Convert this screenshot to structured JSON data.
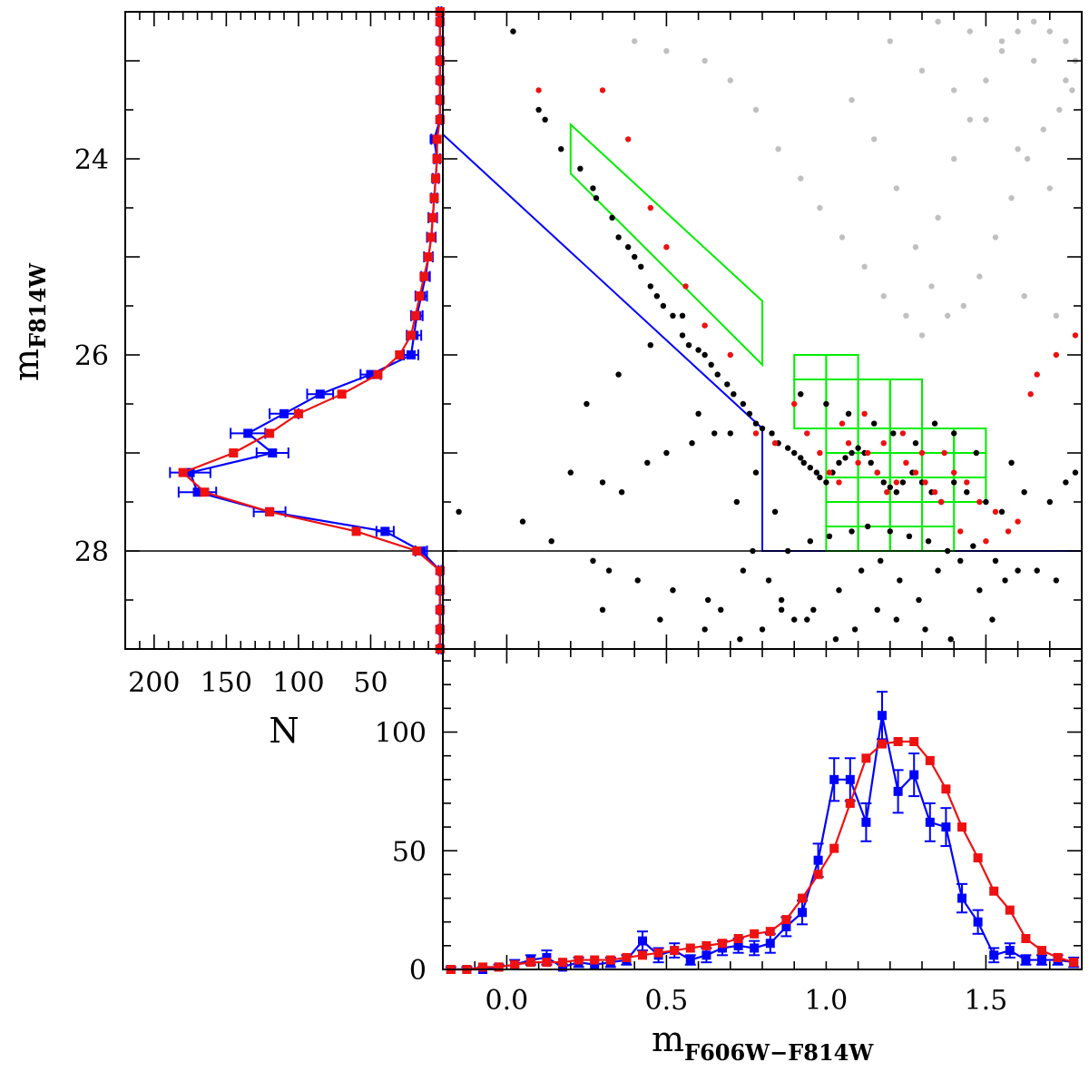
{
  "chart_data": [
    {
      "panel": "cmd",
      "type": "scatter",
      "xlabel": "m",
      "xlabel_sub": "F606W−F814W",
      "ylabel": "m",
      "ylabel_sub": "F814W",
      "xlim": [
        -0.2,
        1.8
      ],
      "ylim": [
        29.0,
        22.5
      ],
      "y_ticks": [
        24,
        26,
        28
      ],
      "y_tick_labels": [
        "24",
        "26",
        "28"
      ],
      "grid": false,
      "series": [
        {
          "color": "#000000",
          "x": [
            0.02,
            0.1,
            0.12,
            0.17,
            0.23,
            0.27,
            0.28,
            0.33,
            0.35,
            0.38,
            0.4,
            0.42,
            0.45,
            0.47,
            0.49,
            0.52,
            0.55,
            0.57,
            0.6,
            0.62,
            0.64,
            0.66,
            0.69,
            0.71,
            0.74,
            0.76,
            0.78,
            0.8,
            0.83,
            0.85,
            0.88,
            0.9,
            0.92,
            0.93,
            0.95,
            0.97,
            0.98,
            1.0,
            1.02,
            1.04,
            1.06,
            1.08,
            1.1,
            1.12,
            1.14,
            1.16,
            1.18,
            1.2,
            1.22,
            1.24,
            1.27,
            1.3,
            1.33,
            1.36,
            1.4,
            1.44,
            1.5,
            1.55,
            1.62,
            1.7,
            1.78,
            0.05,
            0.14,
            0.27,
            0.32,
            0.41,
            0.52,
            0.63,
            0.67,
            0.74,
            0.88,
            0.95,
            1.01,
            1.08,
            1.13,
            1.2,
            1.26,
            1.32,
            1.38,
            1.46,
            1.53,
            1.6,
            1.72,
            -0.15,
            0.2,
            0.3,
            0.36,
            0.44,
            0.5,
            0.58,
            0.65,
            0.72,
            0.77,
            0.82,
            0.86,
            0.9,
            0.96,
            1.04,
            1.11,
            1.17,
            1.23,
            1.29,
            1.35,
            1.42,
            1.48,
            1.56,
            1.66,
            0.25,
            0.35,
            0.45,
            0.55,
            0.6,
            0.7,
            0.78,
            0.84,
            0.92,
            1.0,
            1.07,
            1.15,
            1.21,
            1.28,
            1.34,
            1.4,
            1.47,
            1.58,
            1.75,
            0.3,
            0.48,
            0.62,
            0.73,
            0.8,
            0.86,
            0.94,
            1.03,
            1.09,
            1.16,
            1.22,
            1.31,
            1.39,
            1.52
          ],
          "y": [
            22.7,
            23.5,
            23.6,
            23.9,
            24.1,
            24.3,
            24.4,
            24.6,
            24.8,
            24.9,
            25.0,
            25.1,
            25.3,
            25.4,
            25.5,
            25.6,
            25.8,
            25.9,
            25.95,
            26.0,
            26.1,
            26.2,
            26.3,
            26.4,
            26.5,
            26.6,
            26.7,
            26.75,
            26.8,
            26.9,
            26.95,
            27.0,
            27.05,
            27.1,
            27.15,
            27.2,
            27.25,
            27.3,
            27.2,
            27.1,
            27.05,
            27.0,
            26.95,
            27.0,
            27.1,
            27.2,
            27.3,
            27.35,
            27.4,
            27.3,
            27.2,
            27.3,
            27.4,
            27.5,
            27.3,
            27.4,
            27.5,
            27.6,
            27.4,
            27.5,
            27.2,
            27.7,
            27.9,
            28.1,
            28.2,
            28.3,
            28.4,
            28.5,
            28.6,
            28.2,
            28.0,
            27.9,
            27.85,
            27.8,
            27.75,
            27.8,
            27.85,
            27.9,
            28.0,
            27.95,
            28.1,
            28.2,
            28.3,
            27.6,
            27.2,
            27.3,
            27.4,
            27.1,
            27.0,
            26.9,
            26.8,
            27.5,
            28.0,
            28.3,
            28.5,
            28.7,
            28.6,
            28.4,
            28.2,
            28.1,
            28.3,
            28.5,
            28.2,
            28.1,
            28.4,
            28.3,
            28.2,
            26.5,
            26.2,
            25.9,
            25.6,
            26.6,
            26.8,
            27.2,
            27.6,
            26.4,
            26.5,
            26.6,
            26.7,
            26.8,
            26.9,
            26.7,
            26.8,
            27.0,
            27.1,
            27.3,
            28.6,
            28.7,
            28.8,
            28.9,
            28.8,
            28.6,
            28.7,
            28.9,
            28.8,
            28.6,
            28.7,
            28.8,
            28.9,
            28.7
          ]
        },
        {
          "color": "#ee1111",
          "x": [
            0.1,
            0.3,
            0.38,
            0.45,
            0.5,
            0.56,
            0.62,
            0.7,
            0.78,
            0.84,
            0.9,
            0.94,
            0.98,
            1.01,
            1.04,
            1.07,
            1.1,
            1.13,
            1.16,
            1.19,
            1.22,
            1.25,
            1.28,
            1.31,
            1.34,
            1.37,
            1.4,
            1.44,
            1.48,
            1.53,
            1.6,
            1.66,
            1.72,
            1.78,
            1.05,
            1.12,
            1.18,
            1.24,
            1.3,
            1.36,
            1.42,
            1.5,
            1.57,
            1.64
          ],
          "y": [
            23.3,
            23.3,
            23.8,
            24.5,
            24.9,
            25.3,
            25.7,
            26.0,
            26.8,
            26.9,
            26.5,
            26.8,
            27.0,
            27.2,
            27.3,
            26.9,
            27.1,
            27.0,
            27.2,
            27.4,
            27.3,
            27.1,
            27.2,
            27.3,
            27.4,
            27.0,
            27.2,
            27.3,
            27.5,
            27.6,
            27.7,
            26.2,
            26.0,
            25.8,
            26.7,
            26.6,
            26.9,
            26.8,
            27.0,
            27.5,
            27.8,
            27.9,
            27.8,
            26.4
          ]
        },
        {
          "color": "#c0c0c0",
          "x": [
            0.4,
            0.5,
            0.62,
            0.7,
            0.78,
            0.85,
            0.92,
            0.98,
            1.05,
            1.12,
            1.18,
            1.25,
            1.3,
            1.35,
            1.4,
            1.45,
            1.5,
            1.55,
            1.6,
            1.65,
            1.7,
            1.75,
            1.78,
            1.08,
            1.15,
            1.22,
            1.28,
            1.33,
            1.38,
            1.43,
            1.48,
            1.53,
            1.58,
            1.63,
            1.68,
            1.73,
            1.77,
            1.2,
            1.3,
            1.4,
            1.5,
            1.6,
            1.7,
            1.35,
            1.45,
            1.55,
            1.65,
            1.75,
            1.62,
            1.72
          ],
          "y": [
            22.8,
            22.9,
            23.0,
            23.2,
            23.5,
            23.9,
            24.2,
            24.5,
            24.8,
            25.1,
            25.4,
            25.6,
            25.8,
            24.6,
            24.0,
            23.6,
            23.2,
            22.9,
            22.7,
            22.6,
            22.7,
            22.8,
            23.0,
            23.4,
            23.8,
            24.3,
            24.9,
            25.3,
            25.6,
            25.5,
            25.2,
            24.8,
            24.4,
            24.0,
            23.7,
            23.5,
            23.3,
            22.8,
            23.1,
            23.3,
            23.6,
            23.9,
            24.3,
            22.6,
            22.7,
            22.8,
            23.0,
            23.2,
            25.4,
            25.6
          ]
        }
      ],
      "annotations": [
        {
          "type": "line",
          "color": "#0000ff",
          "points": [
            [
              -0.2,
              23.75
            ],
            [
              0.8,
              26.75
            ],
            [
              0.8,
              28.0
            ],
            [
              1.8,
              28.0
            ]
          ]
        },
        {
          "type": "polygon",
          "color": "#00ee00",
          "points": [
            [
              0.2,
              23.65
            ],
            [
              0.8,
              25.45
            ],
            [
              0.8,
              26.1
            ],
            [
              0.2,
              24.15
            ]
          ]
        },
        {
          "type": "grid_boxes",
          "color": "#00ee00",
          "x_edges": [
            0.9,
            1.0,
            1.1,
            1.2,
            1.3,
            1.4,
            1.5
          ],
          "rows": [
            {
              "y": [
                26.0,
                26.25
              ],
              "x": [
                0.9,
                1.1
              ]
            },
            {
              "y": [
                26.25,
                26.75
              ],
              "x": [
                0.9,
                1.3
              ]
            },
            {
              "y": [
                26.75,
                27.0
              ],
              "x": [
                1.0,
                1.5
              ]
            },
            {
              "y": [
                27.0,
                27.25
              ],
              "x": [
                1.0,
                1.5
              ]
            },
            {
              "y": [
                27.25,
                27.5
              ],
              "x": [
                1.0,
                1.5
              ]
            },
            {
              "y": [
                27.5,
                27.75
              ],
              "x": [
                1.0,
                1.4
              ]
            },
            {
              "y": [
                27.75,
                28.0
              ],
              "x": [
                1.0,
                1.4
              ]
            }
          ]
        },
        {
          "type": "hline",
          "color": "#000000",
          "y": 28.0
        }
      ]
    },
    {
      "panel": "lf",
      "type": "line",
      "xlabel": "N",
      "xlim": [
        220,
        0
      ],
      "x_ticks": [
        200,
        150,
        100,
        50
      ],
      "x_tick_labels": [
        "200",
        "150",
        "100",
        "50"
      ],
      "ylim": [
        29.0,
        22.5
      ],
      "series": [
        {
          "color": "#0000ff",
          "y": [
            22.5,
            22.6,
            22.8,
            23.0,
            23.2,
            23.4,
            23.6,
            23.8,
            24.0,
            24.2,
            24.4,
            24.6,
            24.8,
            25.0,
            25.2,
            25.4,
            25.6,
            25.8,
            26.0,
            26.2,
            26.4,
            26.6,
            26.8,
            27.0,
            27.2,
            27.4,
            27.6,
            27.8,
            28.0,
            28.2,
            28.4,
            28.6,
            28.8,
            29.0
          ],
          "values": [
            2,
            2,
            2,
            2,
            2,
            2,
            2,
            6,
            4,
            5,
            6,
            7,
            8,
            10,
            12,
            15,
            18,
            20,
            22,
            50,
            85,
            110,
            135,
            118,
            175,
            170,
            120,
            40,
            15,
            2,
            2,
            2,
            2,
            2
          ],
          "xerr": [
            1,
            1,
            1,
            1,
            1,
            1,
            1,
            2,
            2,
            2,
            2,
            3,
            3,
            3,
            3,
            4,
            4,
            5,
            5,
            7,
            9,
            10,
            12,
            11,
            14,
            13,
            11,
            6,
            4,
            1,
            1,
            1,
            1,
            1
          ]
        },
        {
          "color": "#ee1111",
          "y": [
            22.5,
            22.6,
            22.8,
            23.0,
            23.2,
            23.4,
            23.6,
            23.8,
            24.0,
            24.2,
            24.4,
            24.6,
            24.8,
            25.0,
            25.2,
            25.4,
            25.6,
            25.8,
            26.0,
            26.2,
            26.4,
            26.6,
            26.8,
            27.0,
            27.2,
            27.4,
            27.6,
            27.8,
            28.0,
            28.2,
            28.4,
            28.6,
            28.8,
            29.0
          ],
          "values": [
            2,
            2,
            2,
            2,
            2,
            2,
            2,
            4,
            4,
            5,
            6,
            7,
            8,
            10,
            13,
            16,
            19,
            22,
            30,
            45,
            70,
            100,
            120,
            145,
            180,
            165,
            120,
            60,
            18,
            2,
            2,
            2,
            2,
            2
          ]
        }
      ]
    },
    {
      "panel": "color_hist",
      "type": "line",
      "xlabel": "m",
      "xlabel_sub": "F606W−F814W",
      "xlim": [
        -0.2,
        1.8
      ],
      "ylim": [
        0,
        135
      ],
      "x_ticks": [
        0.0,
        0.5,
        1.0,
        1.5
      ],
      "x_tick_labels": [
        "0.0",
        "0.5",
        "1.0",
        "1.5"
      ],
      "y_ticks": [
        0,
        50,
        100
      ],
      "y_tick_labels": [
        "0",
        "50",
        "100"
      ],
      "series": [
        {
          "color": "#0000ff",
          "x": [
            -0.175,
            -0.125,
            -0.075,
            -0.025,
            0.025,
            0.075,
            0.125,
            0.175,
            0.225,
            0.275,
            0.325,
            0.375,
            0.425,
            0.475,
            0.525,
            0.575,
            0.625,
            0.675,
            0.725,
            0.775,
            0.825,
            0.875,
            0.925,
            0.975,
            1.025,
            1.075,
            1.125,
            1.175,
            1.225,
            1.275,
            1.325,
            1.375,
            1.425,
            1.475,
            1.525,
            1.575,
            1.625,
            1.675,
            1.725,
            1.775
          ],
          "values": [
            0,
            0,
            0,
            1,
            2,
            4,
            5,
            1,
            3,
            2,
            3,
            4,
            12,
            6,
            8,
            4,
            6,
            9,
            10,
            9,
            11,
            18,
            24,
            46,
            80,
            80,
            62,
            107,
            75,
            82,
            62,
            60,
            30,
            20,
            6,
            8,
            4,
            4,
            4,
            3
          ],
          "yerr": [
            1,
            1,
            1,
            1,
            2,
            2,
            3,
            1,
            2,
            2,
            2,
            2,
            4,
            3,
            3,
            2,
            3,
            3,
            3,
            3,
            4,
            4,
            5,
            7,
            9,
            9,
            8,
            10,
            9,
            9,
            8,
            8,
            6,
            5,
            3,
            3,
            2,
            2,
            2,
            2
          ]
        },
        {
          "color": "#ee1111",
          "x": [
            -0.175,
            -0.125,
            -0.075,
            -0.025,
            0.025,
            0.075,
            0.125,
            0.175,
            0.225,
            0.275,
            0.325,
            0.375,
            0.425,
            0.475,
            0.525,
            0.575,
            0.625,
            0.675,
            0.725,
            0.775,
            0.825,
            0.875,
            0.925,
            0.975,
            1.025,
            1.075,
            1.125,
            1.175,
            1.225,
            1.275,
            1.325,
            1.375,
            1.425,
            1.475,
            1.525,
            1.575,
            1.625,
            1.675,
            1.725,
            1.775
          ],
          "values": [
            0,
            0,
            1,
            1,
            2,
            3,
            3,
            3,
            4,
            4,
            4,
            5,
            6,
            7,
            8,
            9,
            10,
            11,
            13,
            15,
            16,
            21,
            30,
            40,
            51,
            70,
            89,
            95,
            96,
            96,
            88,
            76,
            60,
            47,
            33,
            25,
            13,
            8,
            5,
            3
          ]
        }
      ]
    }
  ]
}
